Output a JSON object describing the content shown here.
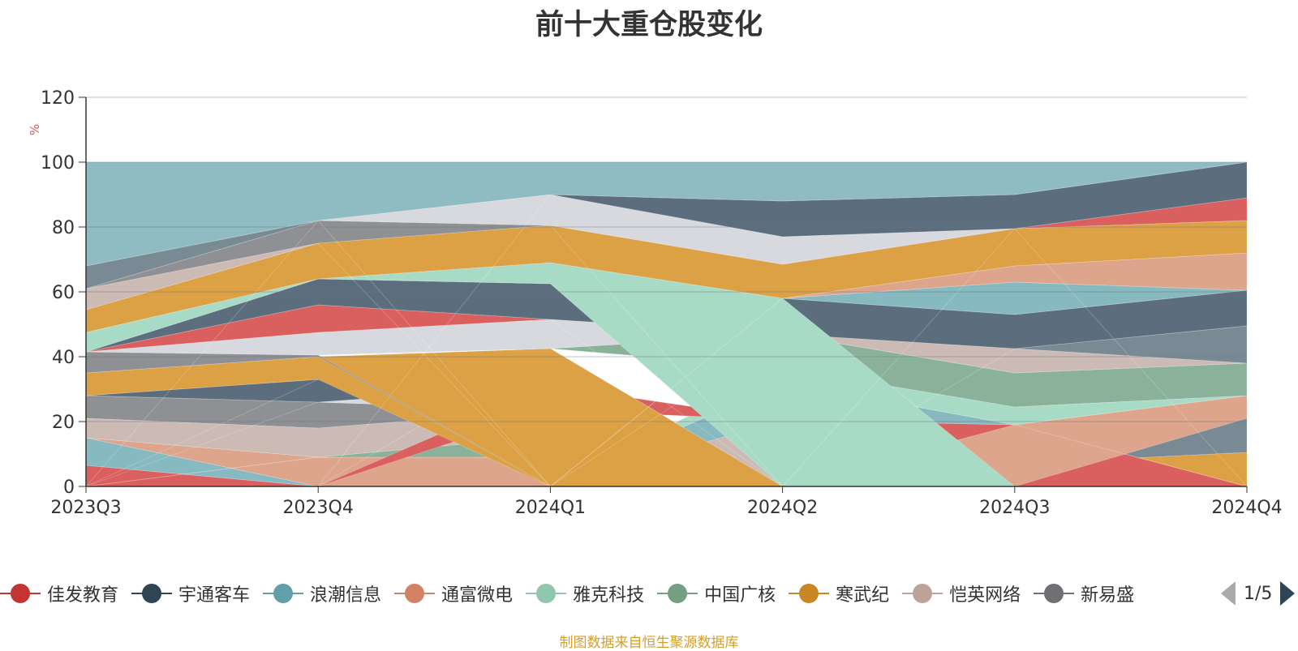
{
  "chart_data": {
    "type": "area",
    "title": "前十大重仓股变化",
    "ylabel": "%",
    "ylim": [
      0,
      120
    ],
    "yticks": [
      "0",
      "20",
      "40",
      "60",
      "80",
      "100",
      "120"
    ],
    "categories": [
      "2023Q3",
      "2023Q4",
      "2024Q1",
      "2024Q2",
      "2024Q3",
      "2024Q4"
    ],
    "bands": [
      {
        "color": "#d9605f",
        "lower": [
          0,
          0,
          0,
          0,
          0,
          0
        ],
        "upper": [
          6.5,
          0,
          0,
          0,
          0,
          0
        ]
      },
      {
        "color": "#86b9c0",
        "lower": [
          6.5,
          0,
          0,
          0,
          0,
          0
        ],
        "upper": [
          15,
          0,
          0,
          0,
          0,
          0
        ]
      },
      {
        "color": "#5c6e7d",
        "lower": [
          0,
          0,
          0,
          0,
          0,
          0
        ],
        "upper": [
          0,
          0,
          0,
          10.5,
          0,
          0
        ]
      },
      {
        "color": "#a8dbc6",
        "lower": [
          0,
          0,
          0,
          10.5,
          0,
          0
        ],
        "upper": [
          0,
          0,
          0,
          16,
          7,
          0
        ]
      },
      {
        "color": "#dca58c",
        "lower": [
          15,
          0,
          0,
          0,
          0,
          0
        ],
        "upper": [
          15,
          9,
          9,
          0,
          0,
          0
        ]
      },
      {
        "color": "#dca045",
        "lower": [
          0,
          0,
          0,
          0,
          7,
          0
        ],
        "upper": [
          0,
          0,
          0,
          0,
          7,
          10.5
        ]
      },
      {
        "color": "#d8d9df",
        "lower": [
          0,
          9,
          9,
          0,
          0,
          0
        ],
        "upper": [
          0,
          9,
          9,
          16,
          0,
          0
        ]
      },
      {
        "color": "#8ab29a",
        "lower": [
          0,
          9,
          9,
          0,
          0,
          0
        ],
        "upper": [
          0,
          9,
          15.5,
          0,
          0,
          0
        ]
      },
      {
        "color": "#798a94",
        "lower": [
          0,
          0,
          0,
          0,
          7,
          10.5
        ],
        "upper": [
          0,
          0,
          0,
          0,
          19,
          21
        ]
      },
      {
        "color": "#d9605f",
        "lower": [
          0,
          0,
          0,
          16,
          0,
          0
        ],
        "upper": [
          0,
          0,
          0,
          20.5,
          19,
          0
        ]
      },
      {
        "color": "#dca58c",
        "lower": [
          0,
          0,
          0,
          0,
          0,
          21
        ],
        "upper": [
          0,
          0,
          0,
          0,
          19,
          28
        ]
      },
      {
        "color": "#ccbab5",
        "lower": [
          15,
          9,
          15.5,
          0,
          0,
          0
        ],
        "upper": [
          21,
          18,
          23.5,
          16,
          0,
          0
        ]
      },
      {
        "color": "#86b9c0",
        "lower": [
          0,
          0,
          0,
          20.5,
          19,
          0
        ],
        "upper": [
          0,
          0,
          0,
          32,
          19,
          0
        ]
      },
      {
        "color": "#a8dbc6",
        "lower": [
          0,
          0,
          0,
          32,
          19,
          28
        ],
        "upper": [
          0,
          0,
          0,
          36.5,
          24.5,
          28
        ]
      },
      {
        "color": "#8f9093",
        "lower": [
          21,
          18,
          23.5,
          0,
          0,
          0
        ],
        "upper": [
          28,
          26,
          23.5,
          0,
          0,
          0
        ]
      },
      {
        "color": "#d9605f",
        "lower": [
          0,
          0,
          23.5,
          20.5,
          0,
          0
        ],
        "upper": [
          0,
          0,
          31,
          20.5,
          0,
          0
        ]
      },
      {
        "color": "#d8d9df",
        "lower": [
          0,
          26,
          23.5,
          0,
          0,
          0
        ],
        "upper": [
          0,
          26,
          31,
          0,
          0,
          0
        ]
      },
      {
        "color": "#5c6e7d",
        "lower": [
          28,
          26,
          31,
          0,
          0,
          0
        ],
        "upper": [
          28,
          33,
          31,
          0,
          0,
          0
        ]
      },
      {
        "color": "#86b9c0",
        "lower": [
          0,
          33,
          31,
          0,
          0,
          0
        ],
        "upper": [
          0,
          33,
          42.5,
          0,
          0,
          0
        ]
      },
      {
        "color": "#8ab29a",
        "lower": [
          0,
          0,
          42.5,
          36.5,
          24.5,
          28
        ],
        "upper": [
          0,
          0,
          42.5,
          47,
          35,
          38
        ]
      },
      {
        "color": "#dca045",
        "lower": [
          28,
          33,
          0,
          0,
          0,
          0
        ],
        "upper": [
          35,
          40,
          42.5,
          0,
          0,
          0
        ]
      },
      {
        "color": "#8f9093",
        "lower": [
          35,
          40,
          0,
          0,
          0,
          0
        ],
        "upper": [
          41.5,
          40.5,
          0,
          0,
          0,
          0
        ]
      },
      {
        "color": "#ccbab5",
        "lower": [
          0,
          0,
          0,
          47,
          35,
          38
        ],
        "upper": [
          0,
          0,
          0,
          47,
          42.5,
          38
        ]
      },
      {
        "color": "#798a94",
        "lower": [
          0,
          0,
          0,
          0,
          42.5,
          38
        ],
        "upper": [
          0,
          0,
          0,
          0,
          42.5,
          49.5
        ]
      },
      {
        "color": "#d8d9df",
        "lower": [
          41.5,
          40.5,
          42.5,
          47,
          0,
          0
        ],
        "upper": [
          41.5,
          47.5,
          51.5,
          47,
          0,
          0
        ]
      },
      {
        "color": "#d9605f",
        "lower": [
          41.5,
          47.5,
          51.5,
          0,
          0,
          0
        ],
        "upper": [
          41.5,
          56,
          51.5,
          0,
          0,
          0
        ]
      },
      {
        "color": "#5c6e7d",
        "lower": [
          41.5,
          56,
          51.5,
          47,
          42.5,
          49.5
        ],
        "upper": [
          41.5,
          64,
          62.5,
          58,
          53,
          60.5
        ]
      },
      {
        "color": "#86b9c0",
        "lower": [
          0,
          0,
          0,
          58,
          53,
          60.5
        ],
        "upper": [
          0,
          0,
          0,
          58,
          63,
          60.5
        ]
      },
      {
        "color": "#a8dbc6",
        "lower": [
          41.5,
          64,
          62.5,
          0,
          0,
          0
        ],
        "upper": [
          47.5,
          64,
          69,
          58,
          0,
          0
        ]
      },
      {
        "color": "#dca58c",
        "lower": [
          0,
          0,
          0,
          58,
          63,
          60.5
        ],
        "upper": [
          0,
          0,
          0,
          58,
          68,
          72
        ]
      },
      {
        "color": "#dca045",
        "lower": [
          47.5,
          64,
          69,
          58,
          68,
          72
        ],
        "upper": [
          54.5,
          75,
          80.5,
          68.5,
          79.5,
          82
        ]
      },
      {
        "color": "#ccbab5",
        "lower": [
          54.5,
          75,
          0,
          0,
          0,
          0
        ],
        "upper": [
          61,
          75,
          0,
          0,
          0,
          0
        ]
      },
      {
        "color": "#d9605f",
        "lower": [
          0,
          0,
          0,
          0,
          79.5,
          82
        ],
        "upper": [
          0,
          0,
          0,
          0,
          79.5,
          89
        ]
      },
      {
        "color": "#8f9093",
        "lower": [
          61,
          75,
          80.5,
          0,
          0,
          0
        ],
        "upper": [
          61,
          82,
          80.5,
          0,
          0,
          0
        ]
      },
      {
        "color": "#d8d9df",
        "lower": [
          0,
          82,
          80.5,
          68.5,
          79.5,
          0
        ],
        "upper": [
          0,
          82,
          90,
          77,
          79.5,
          0
        ]
      },
      {
        "color": "#5c6e7d",
        "lower": [
          0,
          0,
          90,
          77,
          79.5,
          89
        ],
        "upper": [
          0,
          0,
          90,
          88,
          90,
          100
        ]
      },
      {
        "color": "#798a94",
        "lower": [
          61,
          82,
          0,
          0,
          0,
          0
        ],
        "upper": [
          68,
          82,
          0,
          0,
          0,
          0
        ]
      },
      {
        "color": "#8fbcc3",
        "lower": [
          68,
          82,
          90,
          88,
          90,
          100
        ],
        "upper": [
          100,
          100,
          100,
          100,
          100,
          100
        ]
      }
    ]
  },
  "legend": {
    "items": [
      {
        "label": "佳发教育",
        "color": "#c23531"
      },
      {
        "label": "宇通客车",
        "color": "#2f4554"
      },
      {
        "label": "浪潮信息",
        "color": "#61a0a8"
      },
      {
        "label": "通富微电",
        "color": "#d48265"
      },
      {
        "label": "雅克科技",
        "color": "#91c7ae"
      },
      {
        "label": "中国广核",
        "color": "#749f83"
      },
      {
        "label": "寒武纪",
        "color": "#ca8622"
      },
      {
        "label": "恺英网络",
        "color": "#bda29a"
      },
      {
        "label": "新易盛",
        "color": "#6e7074"
      }
    ],
    "page": "1/5"
  },
  "footer": {
    "source": "制图数据来自恒生聚源数据库"
  }
}
